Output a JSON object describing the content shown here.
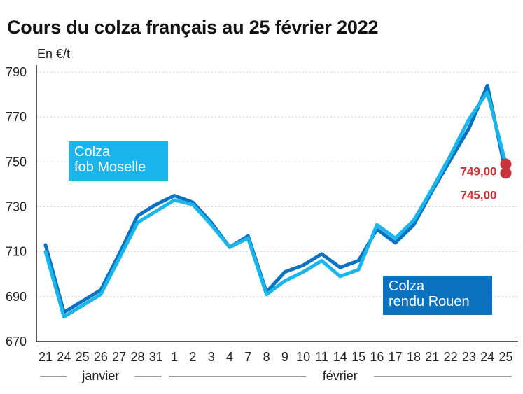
{
  "title": "Cours du colza français au 25 février 2022",
  "unit_label": "En €/t",
  "colors": {
    "moselle": "#1ab6eb",
    "rouen": "#0b72c0",
    "endpoint": "#c8323a"
  },
  "labels": {
    "moselle_line1": "Colza",
    "moselle_line2": "fob Moselle",
    "rouen_line1": "Colza",
    "rouen_line2": "rendu Rouen"
  },
  "month_groups": [
    {
      "label": "janvier",
      "start": 0,
      "end": 6
    },
    {
      "label": "février",
      "start": 7,
      "end": 25
    }
  ],
  "chart_data": {
    "type": "line",
    "title": "Cours du colza français au 25 février 2022",
    "ylabel": "En €/t",
    "ylim": [
      670,
      790
    ],
    "yticks": [
      670,
      690,
      710,
      730,
      750,
      770,
      790
    ],
    "grid": true,
    "categories": [
      "21",
      "24",
      "25",
      "26",
      "27",
      "28",
      "31",
      "1",
      "2",
      "3",
      "4",
      "7",
      "8",
      "9",
      "10",
      "11",
      "14",
      "15",
      "16",
      "17",
      "18",
      "21",
      "22",
      "23",
      "24",
      "25"
    ],
    "series": [
      {
        "name": "Colza rendu Rouen",
        "key": "rouen",
        "values": [
          713,
          683,
          688,
          693,
          709,
          726,
          731,
          735,
          732,
          723,
          712,
          717,
          692,
          701,
          704,
          709,
          703,
          706,
          720,
          714,
          722,
          737,
          751,
          765,
          784,
          745
        ]
      },
      {
        "name": "Colza fob Moselle",
        "key": "moselle",
        "values": [
          710,
          681,
          686,
          691,
          707,
          723,
          728,
          733,
          731,
          722,
          712,
          716,
          691,
          697,
          701,
          706,
          699,
          702,
          722,
          716,
          724,
          738,
          753,
          769,
          781,
          749
        ]
      }
    ],
    "end_labels": [
      "749,00",
      "745,00"
    ]
  }
}
